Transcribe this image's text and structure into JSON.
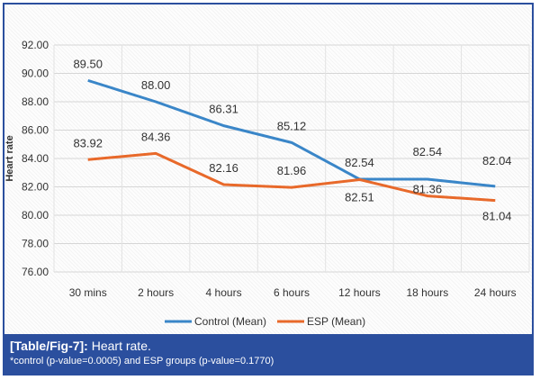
{
  "chart_data": {
    "type": "line",
    "categories": [
      "30 mins",
      "2 hours",
      "4 hours",
      "6 hours",
      "12 hours",
      "18 hours",
      "24 hours"
    ],
    "series": [
      {
        "name": "Control (Mean)",
        "color": "#3a86c8",
        "values": [
          89.5,
          88.0,
          86.31,
          85.12,
          82.54,
          82.54,
          82.04
        ]
      },
      {
        "name": "ESP (Mean)",
        "color": "#e8692a",
        "values": [
          83.92,
          84.36,
          82.16,
          81.96,
          82.51,
          81.36,
          81.04
        ]
      }
    ],
    "data_labels": {
      "Control (Mean)": [
        "89.50",
        "88.00",
        "86.31",
        "85.12",
        "82.54",
        "82.54",
        "82.04"
      ],
      "ESP (Mean)": [
        "83.92",
        "84.36",
        "82.16",
        "81.96",
        "82.51",
        "81.36",
        "81.04"
      ]
    },
    "ylabel": "Heart rate",
    "xlabel": "",
    "ylim": [
      76,
      92
    ],
    "yticks": [
      "76.00",
      "78.00",
      "80.00",
      "82.00",
      "84.00",
      "86.00",
      "88.00",
      "90.00",
      "92.00"
    ],
    "grid": true,
    "legend": "bottom"
  },
  "caption": {
    "label": "[Table/Fig-7]:",
    "title": "Heart rate.",
    "note": "*control (p-value=0.0005) and ESP groups (p-value=0.1770)"
  }
}
